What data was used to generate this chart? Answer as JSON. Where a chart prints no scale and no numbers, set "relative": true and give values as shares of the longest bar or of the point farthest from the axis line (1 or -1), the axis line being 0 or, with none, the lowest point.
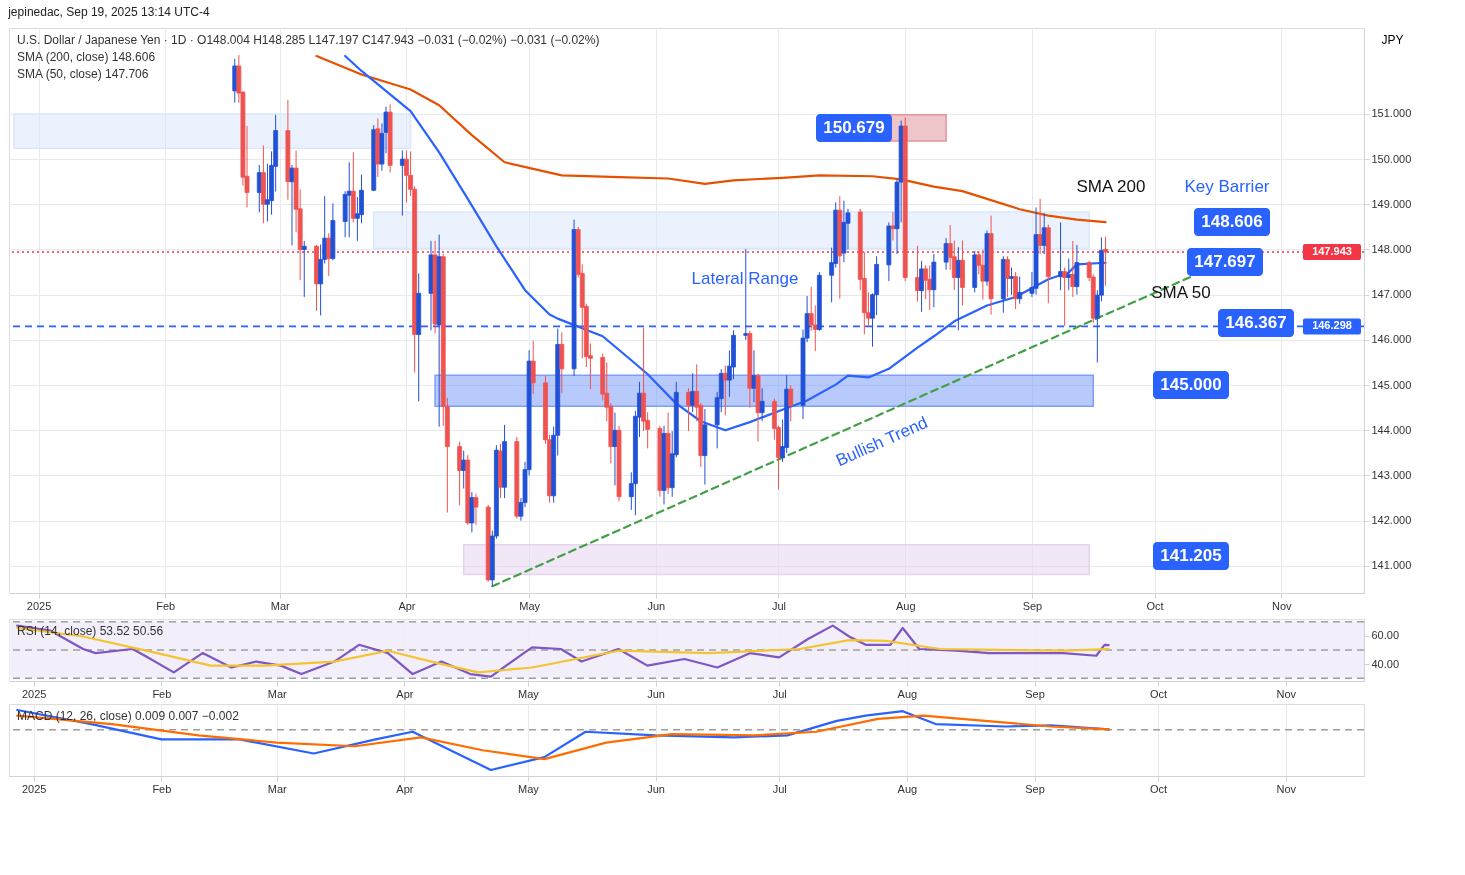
{
  "chart_data": [
    {
      "type": "candlestick",
      "title": "jepinedac, Sep 19, 2025 13:14 UTC-4",
      "ylabel": "JPY",
      "annotations": [
        "U.S. Dollar / Japanese Yen · 1D ·  O148.004  H148.285  L147.197  C147.943  −0.031 (−0.02%)  −0.031 (−0.02%)",
        "SMA (200, close)  148.606",
        "SMA (50, close)  147.706",
        "150.679",
        "148.606",
        "147.697",
        "146.367",
        "145.000",
        "141.205",
        "SMA 200",
        "Key Barrier",
        "SMA 50",
        "Lateral Range",
        "Bullish Trend"
      ],
      "x": [
        "2025-02-18",
        "2025-02-19",
        "2025-02-20",
        "2025-02-21",
        "2025-02-24",
        "2025-02-25",
        "2025-02-26",
        "2025-02-27",
        "2025-02-28",
        "2025-03-03",
        "2025-03-04",
        "2025-03-05",
        "2025-03-06",
        "2025-03-07",
        "2025-03-10",
        "2025-03-11",
        "2025-03-12",
        "2025-03-13",
        "2025-03-14",
        "2025-03-17",
        "2025-03-18",
        "2025-03-19",
        "2025-03-20",
        "2025-03-21",
        "2025-03-24",
        "2025-03-25",
        "2025-03-26",
        "2025-03-27",
        "2025-03-28",
        "2025-03-31",
        "2025-04-01",
        "2025-04-02",
        "2025-04-03",
        "2025-04-04",
        "2025-04-07",
        "2025-04-08",
        "2025-04-09",
        "2025-04-10",
        "2025-04-11",
        "2025-04-14",
        "2025-04-15",
        "2025-04-16",
        "2025-04-17",
        "2025-04-18",
        "2025-04-21",
        "2025-04-22",
        "2025-04-23",
        "2025-04-24",
        "2025-04-25",
        "2025-04-28",
        "2025-04-29",
        "2025-04-30",
        "2025-05-01",
        "2025-05-02",
        "2025-05-05",
        "2025-05-06",
        "2025-05-07",
        "2025-05-08",
        "2025-05-09",
        "2025-05-12",
        "2025-05-13",
        "2025-05-14",
        "2025-05-15",
        "2025-05-16",
        "2025-05-19",
        "2025-05-20",
        "2025-05-21",
        "2025-05-22",
        "2025-05-23",
        "2025-05-26",
        "2025-05-27",
        "2025-05-28",
        "2025-05-29",
        "2025-05-30",
        "2025-06-02",
        "2025-06-03",
        "2025-06-04",
        "2025-06-05",
        "2025-06-06",
        "2025-06-09",
        "2025-06-10",
        "2025-06-11",
        "2025-06-12",
        "2025-06-13",
        "2025-06-16",
        "2025-06-17",
        "2025-06-18",
        "2025-06-19",
        "2025-06-20",
        "2025-06-23",
        "2025-06-24",
        "2025-06-25",
        "2025-06-26",
        "2025-06-27",
        "2025-06-30",
        "2025-07-01",
        "2025-07-02",
        "2025-07-03",
        "2025-07-04",
        "2025-07-07",
        "2025-07-08",
        "2025-07-09",
        "2025-07-10",
        "2025-07-11",
        "2025-07-14",
        "2025-07-15",
        "2025-07-16",
        "2025-07-17",
        "2025-07-18",
        "2025-07-21",
        "2025-07-22",
        "2025-07-23",
        "2025-07-24",
        "2025-07-25",
        "2025-07-28",
        "2025-07-29",
        "2025-07-30",
        "2025-07-31",
        "2025-08-01",
        "2025-08-04",
        "2025-08-05",
        "2025-08-06",
        "2025-08-07",
        "2025-08-08",
        "2025-08-11",
        "2025-08-12",
        "2025-08-13",
        "2025-08-14",
        "2025-08-15",
        "2025-08-18",
        "2025-08-19",
        "2025-08-20",
        "2025-08-21",
        "2025-08-22",
        "2025-08-25",
        "2025-08-26",
        "2025-08-27",
        "2025-08-28",
        "2025-08-29",
        "2025-09-01",
        "2025-09-02",
        "2025-09-03",
        "2025-09-04",
        "2025-09-05",
        "2025-09-08",
        "2025-09-09",
        "2025-09-10",
        "2025-09-11",
        "2025-09-12",
        "2025-09-15",
        "2025-09-16",
        "2025-09-17",
        "2025-09-18",
        "2025-09-19"
      ],
      "ohlc": [
        [
          151.51,
          152.22,
          151.25,
          152.06
        ],
        [
          152.06,
          152.3,
          151.25,
          151.46
        ],
        [
          151.48,
          151.5,
          149.41,
          149.6
        ],
        [
          149.62,
          150.73,
          148.93,
          149.26
        ],
        [
          149.26,
          149.87,
          148.82,
          149.7
        ],
        [
          149.7,
          150.3,
          148.58,
          149.0
        ],
        [
          149.0,
          149.9,
          148.62,
          149.1
        ],
        [
          149.08,
          150.17,
          148.77,
          149.86
        ],
        [
          149.84,
          150.98,
          149.28,
          150.63
        ],
        [
          150.63,
          151.31,
          149.1,
          149.5
        ],
        [
          149.5,
          149.87,
          148.09,
          149.8
        ],
        [
          149.8,
          150.19,
          148.38,
          148.89
        ],
        [
          148.9,
          149.33,
          147.32,
          148.0
        ],
        [
          148.0,
          148.19,
          146.95,
          148.07
        ],
        [
          148.07,
          148.1,
          146.64,
          147.24
        ],
        [
          147.24,
          148.11,
          146.54,
          147.78
        ],
        [
          147.78,
          149.18,
          147.69,
          148.25
        ],
        [
          148.25,
          148.36,
          147.41,
          147.8
        ],
        [
          147.8,
          149.02,
          147.76,
          148.64
        ],
        [
          148.62,
          149.29,
          148.27,
          149.22
        ],
        [
          149.2,
          149.93,
          148.27,
          149.29
        ],
        [
          149.29,
          150.15,
          148.6,
          148.69
        ],
        [
          148.69,
          149.16,
          148.19,
          148.79
        ],
        [
          148.77,
          149.66,
          148.58,
          149.31
        ],
        [
          149.31,
          150.75,
          149.3,
          150.65
        ],
        [
          150.67,
          150.9,
          149.6,
          149.89
        ],
        [
          149.89,
          150.79,
          149.74,
          150.57
        ],
        [
          150.59,
          151.16,
          150.13,
          151.04
        ],
        [
          151.04,
          151.21,
          149.7,
          149.86
        ],
        [
          149.86,
          150.19,
          148.75,
          150.0
        ],
        [
          150.0,
          150.19,
          149.04,
          149.64
        ],
        [
          149.64,
          150.17,
          149.18,
          149.33
        ],
        [
          149.33,
          149.4,
          145.28,
          146.12
        ],
        [
          146.12,
          147.47,
          144.64,
          147.03
        ],
        [
          147.03,
          148.19,
          146.21,
          147.88
        ],
        [
          147.88,
          148.19,
          146.14,
          146.35
        ],
        [
          146.33,
          148.33,
          144.08,
          147.84
        ],
        [
          147.84,
          147.9,
          144.1,
          144.53
        ],
        [
          144.53,
          144.72,
          142.18,
          143.64
        ],
        [
          143.64,
          143.75,
          142.34,
          143.11
        ],
        [
          143.11,
          143.55,
          142.71,
          143.34
        ],
        [
          143.34,
          143.45,
          141.91,
          141.95
        ],
        [
          141.95,
          142.63,
          141.74,
          142.51
        ],
        [
          142.51,
          142.6,
          141.91,
          142.3
        ],
        [
          142.3,
          142.35,
          140.65,
          140.69
        ],
        [
          140.69,
          141.78,
          140.55,
          141.66
        ],
        [
          141.66,
          143.67,
          141.6,
          143.56
        ],
        [
          143.54,
          143.7,
          142.5,
          142.74
        ],
        [
          142.74,
          144.12,
          142.5,
          143.75
        ],
        [
          143.75,
          143.85,
          142.05,
          142.1
        ],
        [
          142.1,
          142.5,
          142.0,
          142.4
        ],
        [
          142.4,
          143.3,
          142.3,
          143.13
        ],
        [
          143.13,
          145.77,
          143.0,
          145.53
        ],
        [
          145.53,
          145.98,
          144.8,
          145.05
        ],
        [
          145.05,
          145.2,
          143.7,
          143.79
        ],
        [
          143.79,
          143.9,
          142.4,
          142.55
        ],
        [
          142.55,
          144.08,
          142.4,
          143.89
        ],
        [
          143.89,
          146.25,
          143.44,
          145.9
        ],
        [
          145.9,
          146.17,
          144.82,
          145.36
        ],
        [
          145.36,
          148.66,
          145.2,
          148.44
        ],
        [
          148.44,
          148.5,
          147.38,
          147.45
        ],
        [
          147.47,
          147.67,
          145.59,
          146.72
        ],
        [
          146.74,
          146.8,
          145.4,
          145.63
        ],
        [
          145.65,
          145.92,
          144.91,
          145.59
        ],
        [
          145.61,
          145.7,
          144.66,
          144.8
        ],
        [
          144.82,
          145.5,
          144.2,
          144.51
        ],
        [
          144.53,
          144.6,
          143.27,
          143.64
        ],
        [
          143.64,
          144.39,
          142.78,
          144.0
        ],
        [
          144.0,
          144.1,
          142.43,
          142.53
        ],
        [
          142.53,
          143.07,
          142.24,
          142.82
        ],
        [
          142.82,
          144.43,
          142.12,
          144.31
        ],
        [
          144.29,
          145.07,
          143.85,
          144.82
        ],
        [
          144.82,
          146.27,
          143.98,
          144.2
        ],
        [
          144.22,
          144.4,
          143.6,
          144.02
        ],
        [
          144.04,
          144.1,
          142.53,
          142.67
        ],
        [
          142.67,
          144.1,
          142.36,
          143.93
        ],
        [
          143.93,
          144.39,
          142.59,
          142.73
        ],
        [
          142.73,
          143.98,
          142.53,
          143.48
        ],
        [
          143.46,
          145.07,
          143.4,
          144.84
        ],
        [
          144.84,
          144.93,
          143.98,
          144.55
        ],
        [
          144.55,
          145.26,
          144.4,
          144.86
        ],
        [
          144.86,
          145.46,
          144.2,
          144.51
        ],
        [
          144.55,
          144.6,
          143.19,
          143.44
        ],
        [
          143.44,
          144.47,
          142.8,
          144.12
        ],
        [
          144.12,
          144.85,
          143.6,
          144.72
        ],
        [
          144.7,
          145.35,
          144.4,
          145.26
        ],
        [
          145.26,
          145.43,
          144.33,
          145.11
        ],
        [
          145.11,
          145.77,
          144.74,
          145.42
        ],
        [
          145.4,
          146.21,
          145.13,
          146.1
        ],
        [
          146.1,
          148.01,
          146.0,
          146.14
        ],
        [
          146.14,
          146.2,
          144.5,
          144.93
        ],
        [
          144.93,
          145.77,
          144.62,
          145.21
        ],
        [
          145.21,
          145.25,
          143.75,
          144.39
        ],
        [
          144.39,
          144.93,
          144.2,
          144.64
        ],
        [
          144.64,
          144.7,
          143.79,
          144.04
        ],
        [
          144.06,
          144.1,
          142.69,
          143.4
        ],
        [
          143.4,
          144.24,
          143.3,
          143.64
        ],
        [
          143.62,
          145.22,
          143.5,
          144.91
        ],
        [
          144.91,
          145.0,
          144.2,
          144.55
        ],
        [
          144.55,
          146.23,
          144.25,
          146.04
        ],
        [
          146.04,
          146.97,
          145.95,
          146.58
        ],
        [
          146.58,
          147.18,
          146.2,
          146.33
        ],
        [
          146.33,
          146.76,
          145.75,
          146.23
        ],
        [
          146.23,
          147.5,
          146.2,
          147.43
        ],
        [
          147.43,
          148.04,
          146.83,
          147.71
        ],
        [
          147.69,
          149.04,
          147.6,
          148.87
        ],
        [
          148.87,
          149.18,
          146.91,
          147.86
        ],
        [
          147.92,
          149.08,
          147.72,
          148.6
        ],
        [
          148.58,
          148.9,
          148.0,
          148.81
        ],
        [
          148.83,
          148.9,
          147.1,
          147.34
        ],
        [
          147.36,
          147.95,
          146.12,
          146.6
        ],
        [
          146.6,
          147.05,
          146.3,
          146.48
        ],
        [
          146.48,
          147.03,
          145.85,
          147.0
        ],
        [
          147.0,
          147.85,
          146.55,
          147.67
        ],
        [
          147.66,
          148.6,
          147.3,
          148.52
        ],
        [
          148.52,
          148.83,
          148.2,
          148.46
        ],
        [
          148.46,
          149.55,
          147.9,
          149.49
        ],
        [
          149.49,
          150.85,
          148.6,
          150.73
        ],
        [
          150.73,
          150.92,
          147.3,
          147.38
        ],
        [
          147.38,
          148.08,
          146.85,
          147.09
        ],
        [
          147.09,
          147.75,
          146.62,
          147.57
        ],
        [
          147.57,
          147.65,
          146.9,
          147.32
        ],
        [
          147.34,
          147.65,
          146.66,
          147.11
        ],
        [
          147.11,
          147.9,
          146.72,
          147.72
        ],
        [
          147.72,
          148.25,
          147.55,
          148.13
        ],
        [
          148.13,
          148.54,
          147.55,
          147.82
        ],
        [
          147.84,
          148.2,
          147.1,
          147.38
        ],
        [
          147.38,
          148.05,
          146.21,
          147.76
        ],
        [
          147.76,
          148.2,
          146.76,
          147.16
        ],
        [
          147.16,
          147.97,
          147.05,
          147.88
        ],
        [
          147.88,
          147.97,
          147.45,
          147.65
        ],
        [
          147.65,
          148.0,
          146.89,
          147.3
        ],
        [
          147.3,
          148.42,
          147.2,
          148.35
        ],
        [
          148.35,
          148.75,
          146.56,
          146.91
        ],
        [
          146.91,
          147.85,
          146.6,
          147.78
        ],
        [
          147.78,
          147.85,
          146.95,
          147.36
        ],
        [
          147.36,
          147.6,
          147.0,
          147.4
        ],
        [
          147.4,
          147.5,
          146.68,
          146.91
        ],
        [
          146.91,
          147.4,
          146.8,
          147.05
        ],
        [
          147.03,
          147.5,
          146.95,
          147.16
        ],
        [
          147.14,
          148.93,
          147.0,
          148.33
        ],
        [
          148.33,
          149.12,
          147.9,
          148.09
        ],
        [
          148.09,
          148.8,
          147.9,
          148.48
        ],
        [
          148.48,
          148.55,
          146.81,
          147.4
        ],
        [
          147.4,
          148.6,
          147.1,
          147.51
        ],
        [
          147.51,
          147.6,
          146.31,
          147.38
        ],
        [
          147.38,
          147.8,
          147.1,
          147.45
        ],
        [
          147.45,
          148.19,
          146.95,
          147.18
        ],
        [
          147.18,
          148.1,
          147.0,
          147.71
        ],
        [
          147.71,
          147.75,
          147.3,
          147.38
        ],
        [
          147.39,
          147.45,
          146.37,
          146.48
        ],
        [
          146.48,
          147.1,
          145.5,
          146.99
        ],
        [
          146.99,
          148.27,
          146.85,
          147.98
        ],
        [
          148.004,
          148.285,
          147.197,
          147.943
        ]
      ],
      "colors": [
        "#2151d6",
        "#ef5350",
        "#ef5350",
        "#ef5350",
        "#2151d6",
        "#ef5350",
        "#2151d6",
        "#2151d6",
        "#2151d6",
        "#ef5350",
        "#2151d6",
        "#ef5350",
        "#ef5350",
        "#2151d6",
        "#ef5350",
        "#2151d6",
        "#2151d6",
        "#ef5350",
        "#2151d6",
        "#2151d6",
        "#2151d6",
        "#ef5350",
        "#2151d6",
        "#2151d6",
        "#2151d6",
        "#ef5350",
        "#2151d6",
        "#2151d6",
        "#ef5350",
        "#2151d6",
        "#ef5350",
        "#ef5350",
        "#ef5350",
        "#2151d6",
        "#2151d6",
        "#ef5350",
        "#2151d6",
        "#ef5350",
        "#ef5350",
        "#ef5350",
        "#2151d6",
        "#ef5350",
        "#2151d6",
        "#ef5350",
        "#ef5350",
        "#2151d6",
        "#2151d6",
        "#ef5350",
        "#2151d6",
        "#ef5350",
        "#2151d6",
        "#2151d6",
        "#2151d6",
        "#ef5350",
        "#ef5350",
        "#ef5350",
        "#2151d6",
        "#2151d6",
        "#ef5350",
        "#2151d6",
        "#ef5350",
        "#ef5350",
        "#ef5350",
        "#ef5350",
        "#ef5350",
        "#ef5350",
        "#ef5350",
        "#2151d6",
        "#ef5350",
        "#2151d6",
        "#2151d6",
        "#2151d6",
        "#ef5350",
        "#ef5350",
        "#ef5350",
        "#2151d6",
        "#ef5350",
        "#2151d6",
        "#2151d6",
        "#ef5350",
        "#2151d6",
        "#ef5350",
        "#ef5350",
        "#2151d6",
        "#2151d6",
        "#2151d6",
        "#ef5350",
        "#2151d6",
        "#2151d6",
        "#2151d6",
        "#ef5350",
        "#2151d6",
        "#ef5350",
        "#2151d6",
        "#ef5350",
        "#ef5350",
        "#2151d6",
        "#2151d6",
        "#ef5350",
        "#2151d6",
        "#2151d6",
        "#ef5350",
        "#ef5350",
        "#2151d6",
        "#2151d6",
        "#2151d6",
        "#ef5350",
        "#2151d6",
        "#2151d6",
        "#ef5350",
        "#ef5350",
        "#ef5350",
        "#2151d6",
        "#2151d6",
        "#2151d6",
        "#ef5350",
        "#2151d6",
        "#2151d6",
        "#ef5350",
        "#ef5350",
        "#2151d6",
        "#ef5350",
        "#ef5350",
        "#2151d6",
        "#2151d6",
        "#ef5350",
        "#ef5350",
        "#2151d6",
        "#ef5350",
        "#2151d6",
        "#ef5350",
        "#ef5350",
        "#2151d6",
        "#ef5350",
        "#2151d6",
        "#ef5350",
        "#2151d6",
        "#ef5350",
        "#2151d6",
        "#2151d6",
        "#2151d6",
        "#ef5350",
        "#2151d6",
        "#ef5350",
        "#2151d6",
        "#ef5350",
        "#2151d6",
        "#ef5350",
        "#2151d6",
        "#ef5350",
        "#ef5350",
        "#2151d6",
        "#2151d6",
        "#ef5350"
      ],
      "series": [
        {
          "type": "line",
          "color": "#dbe7fb",
          "x": [
            "2024-12-26",
            "2025-04-02"
          ],
          "values": [
            null,
            null
          ],
          "lower": [
            150.24,
            150.24
          ],
          "upper": [
            151.0,
            151.0
          ]
        },
        {
          "type": "line",
          "color": "#dbe7fb",
          "x": [
            "2025-03-24",
            "2025-09-15"
          ],
          "values": [
            null,
            null
          ],
          "lower": [
            148.02,
            148.02
          ],
          "upper": [
            148.83,
            148.83
          ]
        },
        {
          "type": "line",
          "color": "#e0959b",
          "x": [
            "2025-07-23",
            "2025-08-11"
          ],
          "values": [
            null,
            null
          ],
          "lower": [
            150.4,
            150.4
          ],
          "upper": [
            150.98,
            150.98
          ]
        },
        {
          "type": "line",
          "color": "#7d9ff9",
          "x": [
            "2025-04-08",
            "2025-09-16"
          ],
          "values": [
            null,
            null
          ],
          "lower": [
            144.53,
            144.53
          ],
          "upper": [
            145.22,
            145.22
          ]
        },
        {
          "type": "line",
          "color": "#e8d3ee",
          "x": [
            "2025-04-15",
            "2025-09-15"
          ],
          "values": [
            null,
            null
          ],
          "lower": [
            140.81,
            140.81
          ],
          "upper": [
            141.47,
            141.47
          ]
        },
        {
          "type": "line",
          "color": "#e65100",
          "x": [
            "2025-03-10",
            "2025-03-21",
            "2025-04-02",
            "2025-04-09",
            "2025-04-17",
            "2025-04-25",
            "2025-05-09",
            "2025-05-23",
            "2025-06-04",
            "2025-06-13",
            "2025-06-20",
            "2025-07-03",
            "2025-07-11",
            "2025-07-24",
            "2025-07-31",
            "2025-08-08",
            "2025-08-15",
            "2025-08-21",
            "2025-08-29",
            "2025-09-05",
            "2025-09-12",
            "2025-09-19"
          ],
          "values": [
            152.28,
            151.87,
            151.54,
            151.19,
            150.53,
            149.93,
            149.64,
            149.6,
            149.57,
            149.45,
            149.53,
            149.59,
            149.64,
            149.62,
            149.55,
            149.39,
            149.29,
            149.12,
            148.89,
            148.75,
            148.66,
            148.606
          ]
        },
        {
          "type": "line",
          "color": "#2962ff",
          "x": [
            "2025-03-17",
            "2025-03-21",
            "2025-04-02",
            "2025-04-09",
            "2025-04-16",
            "2025-04-23",
            "2025-04-30",
            "2025-05-06",
            "2025-05-08",
            "2025-05-19",
            "2025-05-26",
            "2025-05-30",
            "2025-06-06",
            "2025-06-12",
            "2025-06-18",
            "2025-06-24",
            "2025-06-30",
            "2025-07-08",
            "2025-07-15",
            "2025-07-18",
            "2025-07-23",
            "2025-07-28",
            "2025-08-04",
            "2025-08-08",
            "2025-08-13",
            "2025-08-21",
            "2025-08-28",
            "2025-09-05",
            "2025-09-10",
            "2025-09-12",
            "2025-09-19"
          ],
          "values": [
            152.28,
            151.95,
            151.06,
            150.15,
            149.12,
            148.07,
            147.1,
            146.56,
            146.47,
            146.08,
            145.55,
            145.24,
            144.59,
            144.2,
            144.0,
            144.18,
            144.39,
            144.66,
            145.01,
            145.21,
            145.17,
            145.36,
            145.83,
            146.08,
            146.41,
            146.76,
            146.95,
            147.34,
            147.49,
            147.67,
            147.706
          ]
        },
        {
          "type": "line",
          "color": "#43a047",
          "line_style": "dashed",
          "x": [
            "2025-04-22",
            "2025-10-10"
          ],
          "values": [
            140.55,
            147.4
          ]
        }
      ],
      "ref_lines": [
        {
          "axis": "y",
          "value": 146.298,
          "label": "146.298",
          "color": "#2962ff",
          "line_style": "dashed"
        },
        {
          "axis": "y",
          "value": 147.943,
          "label": "147.943",
          "color": "#f23645",
          "line_style": "dotted"
        }
      ],
      "xlim": [
        "2024-12-26",
        "2025-11-20"
      ],
      "ylim": [
        140.4,
        152.9
      ],
      "xticks": [
        {
          "value": "2025-01-01",
          "label": "2025"
        },
        {
          "value": "2025-02-01",
          "label": "Feb"
        },
        {
          "value": "2025-03-01",
          "label": "Mar"
        },
        {
          "value": "2025-04-01",
          "label": "Apr"
        },
        {
          "value": "2025-05-01",
          "label": "May"
        },
        {
          "value": "2025-06-01",
          "label": "Jun"
        },
        {
          "value": "2025-07-01",
          "label": "Jul"
        },
        {
          "value": "2025-08-01",
          "label": "Aug"
        },
        {
          "value": "2025-09-01",
          "label": "Sep"
        },
        {
          "value": "2025-10-01",
          "label": "Oct"
        },
        {
          "value": "2025-11-01",
          "label": "Nov"
        }
      ],
      "yticks": [
        {
          "value": 141,
          "label": "141.000"
        },
        {
          "value": 142,
          "label": "142.000"
        },
        {
          "value": 143,
          "label": "143.000"
        },
        {
          "value": 144,
          "label": "144.000"
        },
        {
          "value": 145,
          "label": "145.000"
        },
        {
          "value": 146,
          "label": "146.000"
        },
        {
          "value": 147,
          "label": "147.000"
        },
        {
          "value": 148,
          "label": "148.000"
        },
        {
          "value": 149,
          "label": "149.000"
        },
        {
          "value": 150,
          "label": "150.000"
        },
        {
          "value": 151,
          "label": "151.000"
        }
      ],
      "grid": true
    },
    {
      "type": "line",
      "annotations": [
        "RSI (14, close)  53.52  50.56"
      ],
      "series": [
        {
          "color": "#7e57c2",
          "x": [
            "2024-12-28",
            "2025-01-05",
            "2025-01-13",
            "2025-01-16",
            "2025-01-25",
            "2025-01-28",
            "2025-02-04",
            "2025-02-11",
            "2025-02-18",
            "2025-02-24",
            "2025-03-02",
            "2025-03-07",
            "2025-03-15",
            "2025-03-21",
            "2025-03-28",
            "2025-04-03",
            "2025-04-10",
            "2025-04-17",
            "2025-04-22",
            "2025-04-30",
            "2025-05-02",
            "2025-05-09",
            "2025-05-14",
            "2025-05-23",
            "2025-05-30",
            "2025-06-08",
            "2025-06-16",
            "2025-06-24",
            "2025-07-01",
            "2025-07-08",
            "2025-07-14",
            "2025-07-18",
            "2025-07-22",
            "2025-07-28",
            "2025-07-31",
            "2025-08-04",
            "2025-08-13",
            "2025-08-21",
            "2025-08-29",
            "2025-09-08",
            "2025-09-16",
            "2025-09-18",
            "2025-09-19"
          ],
          "values": [
            67.3,
            63.8,
            50.7,
            47.8,
            50.7,
            45.9,
            34.1,
            47.8,
            37.6,
            41.8,
            38.9,
            32.9,
            41.8,
            53.7,
            47.8,
            32.9,
            41.8,
            32.9,
            31.1,
            47.8,
            51.9,
            50.7,
            41.8,
            50.7,
            38.9,
            43.6,
            37.6,
            47.8,
            44.8,
            57.8,
            67.3,
            59.6,
            53.7,
            53.7,
            65.6,
            50.7,
            49.5,
            47.8,
            47.8,
            47.8,
            45.9,
            53.7,
            53.52
          ]
        },
        {
          "color": "#f4c430",
          "x": [
            "2024-12-28",
            "2025-01-13",
            "2025-01-31",
            "2025-02-13",
            "2025-02-26",
            "2025-03-15",
            "2025-03-28",
            "2025-04-10",
            "2025-04-19",
            "2025-05-02",
            "2025-05-23",
            "2025-06-14",
            "2025-07-06",
            "2025-07-18",
            "2025-07-27",
            "2025-08-09",
            "2025-09-08",
            "2025-09-19"
          ],
          "values": [
            65.6,
            59.6,
            47.8,
            38.9,
            38.9,
            41.8,
            49.5,
            40.0,
            34.1,
            37.6,
            49.5,
            47.8,
            50.7,
            57.0,
            56.5,
            50.7,
            49.5,
            50.56
          ]
        }
      ],
      "bands": [
        {
          "axis": "y",
          "from": 30,
          "to": 70,
          "color": "#f1ecfa"
        }
      ],
      "ref_lines": [
        {
          "axis": "y",
          "value": 70,
          "color": "#9e9e9e",
          "line_style": "dashed"
        },
        {
          "axis": "y",
          "value": 50,
          "color": "#9e9e9e",
          "line_style": "dashed"
        },
        {
          "axis": "y",
          "value": 30,
          "color": "#9e9e9e",
          "line_style": "dashed"
        }
      ],
      "xlim": [
        "2024-12-26",
        "2025-11-20"
      ],
      "ylim": [
        28,
        72
      ],
      "xticks": [
        {
          "value": "2025-01-01",
          "label": "2025"
        },
        {
          "value": "2025-02-01",
          "label": "Feb"
        },
        {
          "value": "2025-03-01",
          "label": "Mar"
        },
        {
          "value": "2025-04-01",
          "label": "Apr"
        },
        {
          "value": "2025-05-01",
          "label": "May"
        },
        {
          "value": "2025-06-01",
          "label": "Jun"
        },
        {
          "value": "2025-07-01",
          "label": "Jul"
        },
        {
          "value": "2025-08-01",
          "label": "Aug"
        },
        {
          "value": "2025-09-01",
          "label": "Sep"
        },
        {
          "value": "2025-10-01",
          "label": "Oct"
        },
        {
          "value": "2025-11-01",
          "label": "Nov"
        }
      ],
      "yticks": [
        {
          "value": 60,
          "label": "60.00"
        },
        {
          "value": 40,
          "label": "40.00"
        }
      ],
      "grid": "x"
    },
    {
      "type": "line",
      "relative": true,
      "annotations": [
        "MACD (12, 26, close)  0.009  0.007  −0.002"
      ],
      "series": [
        {
          "color": "#2962ff",
          "x": [
            "2024-12-28",
            "2025-01-15",
            "2025-02-01",
            "2025-02-20",
            "2025-03-10",
            "2025-03-25",
            "2025-04-03",
            "2025-04-22",
            "2025-05-05",
            "2025-05-15",
            "2025-06-01",
            "2025-06-20",
            "2025-07-03",
            "2025-07-15",
            "2025-07-22",
            "2025-07-31",
            "2025-08-08",
            "2025-08-25",
            "2025-09-05",
            "2025-09-19"
          ],
          "values": [
            0.49,
            0.14,
            -0.24,
            -0.24,
            -0.59,
            -0.24,
            -0.05,
            -1,
            -0.68,
            -0.05,
            -0.14,
            -0.19,
            -0.14,
            0.22,
            0.35,
            0.46,
            0.14,
            0.08,
            0.11,
            0.01
          ]
        },
        {
          "color": "#ff6d00",
          "x": [
            "2024-12-28",
            "2025-01-20",
            "2025-02-10",
            "2025-03-01",
            "2025-03-20",
            "2025-04-05",
            "2025-04-20",
            "2025-05-05",
            "2025-05-20",
            "2025-06-05",
            "2025-06-25",
            "2025-07-10",
            "2025-07-25",
            "2025-08-05",
            "2025-08-20",
            "2025-09-05",
            "2025-09-19"
          ],
          "values": [
            0.35,
            0.14,
            -0.14,
            -0.32,
            -0.41,
            -0.19,
            -0.51,
            -0.73,
            -0.32,
            -0.11,
            -0.14,
            -0.05,
            0.27,
            0.35,
            0.22,
            0.08,
            0.01
          ]
        }
      ],
      "ref_lines": [
        {
          "axis": "y",
          "value": 0,
          "color": "#9e9e9e",
          "line_style": "dashed"
        }
      ],
      "xlim": [
        "2024-12-26",
        "2025-11-20"
      ],
      "xticks": [
        {
          "value": "2025-01-01",
          "label": "2025"
        },
        {
          "value": "2025-02-01",
          "label": "Feb"
        },
        {
          "value": "2025-03-01",
          "label": "Mar"
        },
        {
          "value": "2025-04-01",
          "label": "Apr"
        },
        {
          "value": "2025-05-01",
          "label": "May"
        },
        {
          "value": "2025-06-01",
          "label": "Jun"
        },
        {
          "value": "2025-07-01",
          "label": "Jul"
        },
        {
          "value": "2025-08-01",
          "label": "Aug"
        },
        {
          "value": "2025-09-01",
          "label": "Sep"
        },
        {
          "value": "2025-10-01",
          "label": "Oct"
        },
        {
          "value": "2025-11-01",
          "label": "Nov"
        }
      ],
      "grid": "x",
      "tick_labels": "x"
    }
  ]
}
